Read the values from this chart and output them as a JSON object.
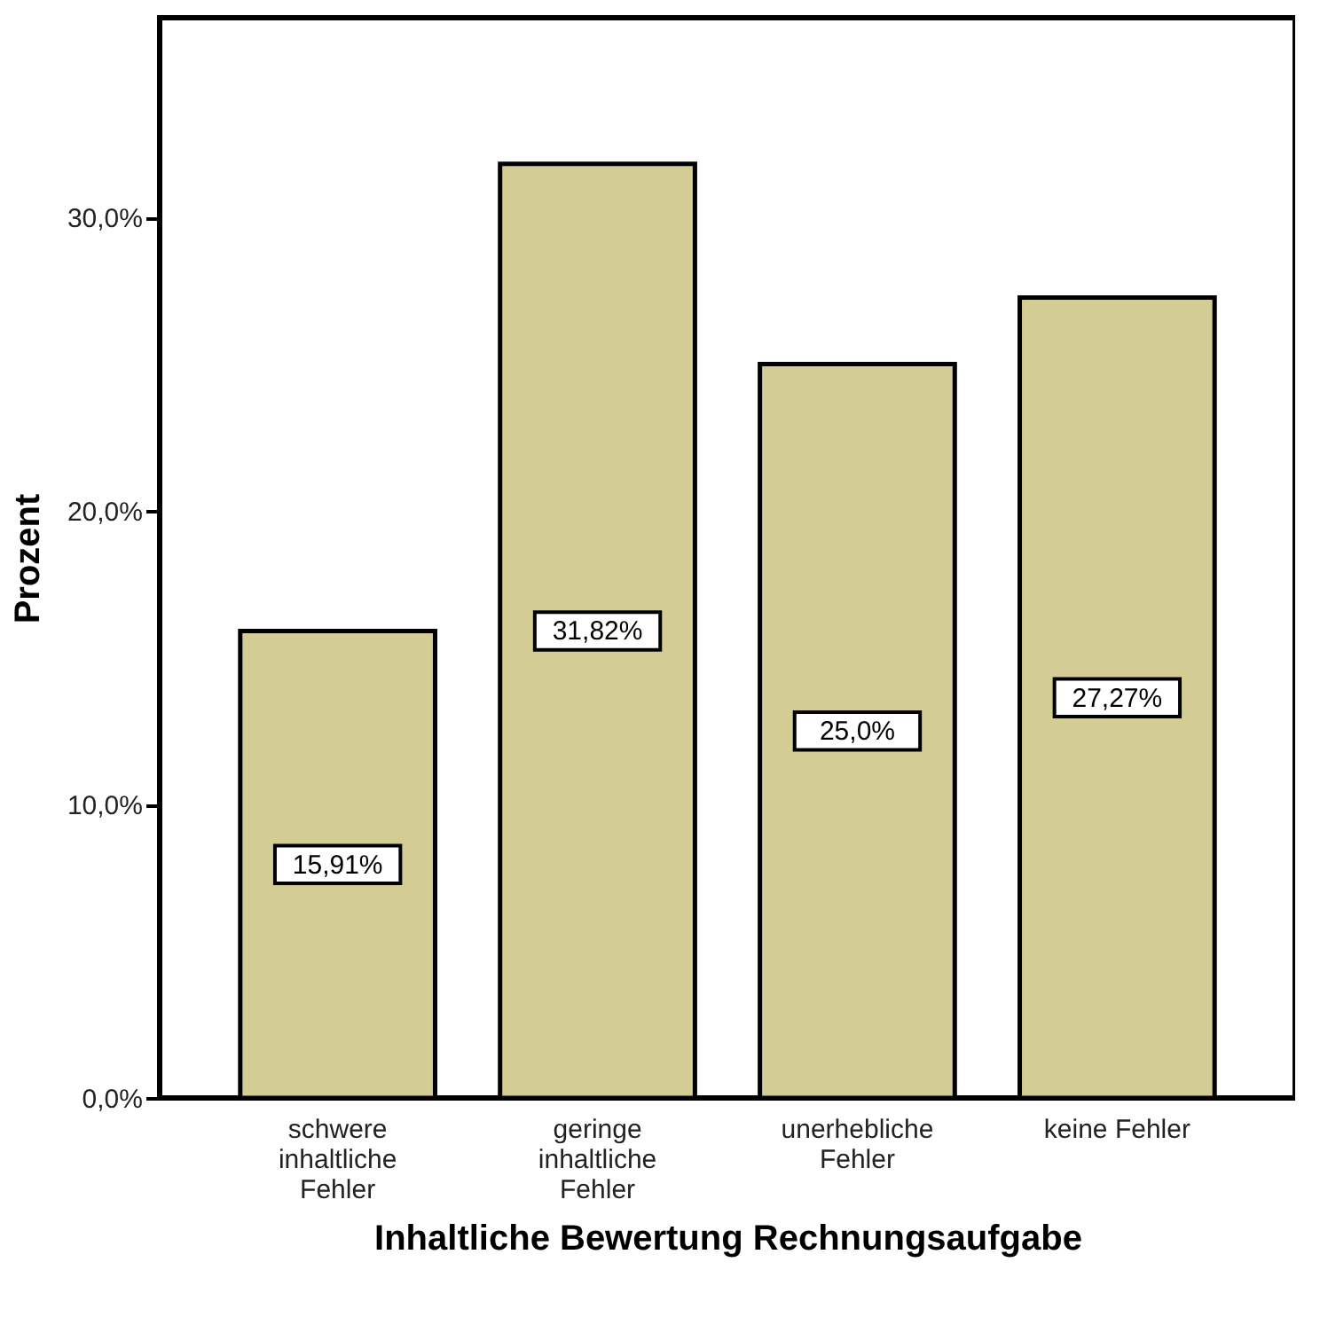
{
  "chart_data": {
    "type": "bar",
    "xlabel": "Inhaltliche Bewertung Rechnungsaufgabe",
    "ylabel": "Prozent",
    "categories": [
      "schwere\ninhaltliche\nFehler",
      "geringe\ninhaltliche\nFehler",
      "unerhebliche\nFehler",
      "keine Fehler"
    ],
    "values": [
      15.91,
      31.82,
      25.0,
      27.27
    ],
    "value_labels": [
      "15,91%",
      "31,82%",
      "25,0%",
      "27,27%"
    ],
    "color": "#d3cc94",
    "ylim": [
      0,
      36.8
    ],
    "yticks": [
      {
        "value": 0,
        "label": "0,0%"
      },
      {
        "value": 10,
        "label": "10,0%"
      },
      {
        "value": 20,
        "label": "20,0%"
      },
      {
        "value": 30,
        "label": "30,0%"
      }
    ],
    "grid": false
  }
}
